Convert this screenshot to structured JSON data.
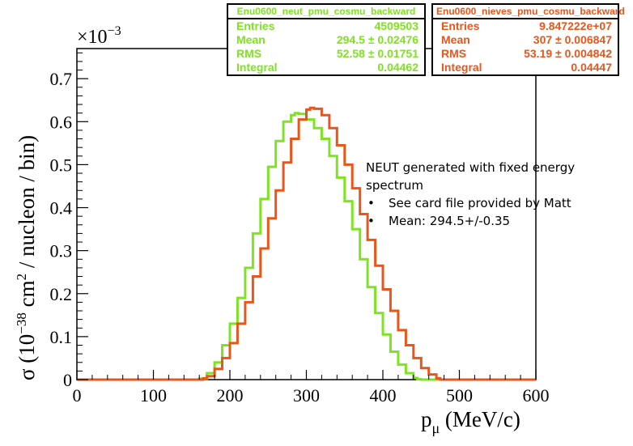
{
  "chart_data": {
    "type": "line",
    "title": "",
    "xlabel": "p",
    "xlabel_sub": "μ",
    "xlabel_unit": " (MeV/c)",
    "ylabel_prefix": "σ (10",
    "ylabel_exp1": "−38",
    "ylabel_mid": " cm",
    "ylabel_exp2": "2",
    "ylabel_suffix": " / nucleon / bin)",
    "y_multiplier_base": "×10",
    "y_multiplier_exp": "−3",
    "xlim": [
      0,
      600
    ],
    "ylim": [
      0,
      0.77
    ],
    "x_ticks": [
      "0",
      "100",
      "200",
      "300",
      "400",
      "500",
      "600"
    ],
    "y_ticks": [
      "0",
      "0.1",
      "0.2",
      "0.3",
      "0.4",
      "0.5",
      "0.6",
      "0.7"
    ],
    "series": [
      {
        "name": "Enu0600_neut_pmu_cosmu_backward",
        "color": "#7ee320",
        "x": [
          0,
          155,
          160,
          170,
          180,
          190,
          200,
          210,
          220,
          230,
          240,
          250,
          260,
          270,
          280,
          285,
          290,
          300,
          310,
          320,
          330,
          340,
          350,
          360,
          370,
          380,
          390,
          400,
          410,
          420,
          430,
          440,
          445,
          450,
          600
        ],
        "y": [
          0,
          0,
          0.002,
          0.015,
          0.04,
          0.08,
          0.13,
          0.19,
          0.26,
          0.34,
          0.42,
          0.495,
          0.555,
          0.6,
          0.615,
          0.62,
          0.618,
          0.605,
          0.585,
          0.56,
          0.52,
          0.47,
          0.415,
          0.35,
          0.28,
          0.215,
          0.155,
          0.105,
          0.065,
          0.035,
          0.015,
          0.004,
          0.001,
          0,
          0
        ]
      },
      {
        "name": "Enu0600_nieves_pmu_cosmu_backward",
        "color": "#e8561c",
        "x": [
          0,
          160,
          165,
          170,
          180,
          190,
          200,
          210,
          220,
          230,
          240,
          250,
          260,
          270,
          280,
          290,
          300,
          305,
          310,
          320,
          330,
          340,
          350,
          360,
          370,
          380,
          390,
          400,
          410,
          420,
          430,
          440,
          450,
          460,
          470,
          475,
          600
        ],
        "y": [
          0,
          0,
          0.003,
          0.008,
          0.025,
          0.05,
          0.085,
          0.13,
          0.18,
          0.24,
          0.305,
          0.375,
          0.44,
          0.505,
          0.56,
          0.605,
          0.628,
          0.632,
          0.63,
          0.615,
          0.585,
          0.545,
          0.5,
          0.445,
          0.385,
          0.325,
          0.265,
          0.21,
          0.16,
          0.115,
          0.08,
          0.05,
          0.027,
          0.012,
          0.003,
          0,
          0
        ]
      }
    ]
  },
  "stats_boxes": [
    {
      "title": "Enu0600_neut_pmu_cosmu_backward",
      "color": "#7ee320",
      "rows": [
        {
          "label": "Entries",
          "value": "4509503"
        },
        {
          "label": "Mean",
          "value": "294.5 ± 0.02476"
        },
        {
          "label": "RMS",
          "value": "52.58 ± 0.01751"
        },
        {
          "label": "Integral",
          "value": "0.04462"
        }
      ]
    },
    {
      "title": "Enu0600_nieves_pmu_cosmu_backward",
      "color": "#e8561c",
      "rows": [
        {
          "label": "Entries",
          "value": "9.847222e+07"
        },
        {
          "label": "Mean",
          "value": "307 ± 0.006847"
        },
        {
          "label": "RMS",
          "value": "53.19 ± 0.004842"
        },
        {
          "label": "Integral",
          "value": "0.04447"
        }
      ]
    }
  ],
  "annotation": {
    "line1": "NEUT generated with fixed energy spectrum",
    "bullets": [
      "See card file provided by Matt",
      "Mean: 294.5+/-0.35"
    ]
  }
}
